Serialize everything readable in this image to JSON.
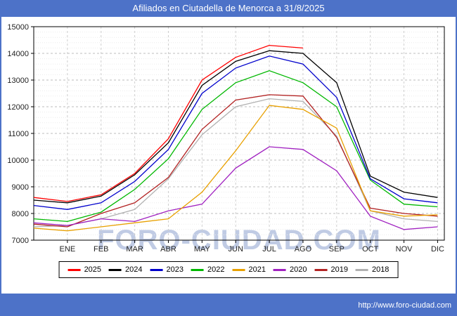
{
  "header": {
    "title": "Afiliados en Ciutadella de Menorca a 31/8/2025"
  },
  "watermark": "FORO-CIUDAD.COM",
  "footer": {
    "url": "http://www.foro-ciudad.com"
  },
  "colors": {
    "frame_blue": "#4d72c8",
    "panel_white": "#ffffff",
    "plot_border": "#000000",
    "grid_major": "#bdbdbd",
    "grid_minor": "#ececec",
    "watermark": "#8299cb"
  },
  "chart_data": {
    "type": "line",
    "title": "Afiliados en Ciutadella de Menorca a 31/8/2025",
    "xlabel": "",
    "ylabel": "",
    "ylim": [
      7000,
      15000
    ],
    "ytick_step": 1000,
    "ytick_minor_step": 200,
    "grid": true,
    "legend_position": "bottom",
    "categories": [
      "ENE",
      "FEB",
      "MAR",
      "ABR",
      "MAY",
      "JUN",
      "JUL",
      "AGO",
      "SEP",
      "OCT",
      "NOV",
      "DIC"
    ],
    "series": [
      {
        "name": "2025",
        "color": "#ff0000",
        "start": 8600,
        "values": [
          8450,
          8700,
          9500,
          10800,
          13000,
          13850,
          14300,
          14200,
          null,
          null,
          null,
          null
        ]
      },
      {
        "name": "2024",
        "color": "#000000",
        "start": 8500,
        "values": [
          8400,
          8650,
          9450,
          10650,
          12800,
          13700,
          14100,
          14000,
          12900,
          9400,
          8800,
          8600
        ]
      },
      {
        "name": "2023",
        "color": "#0000cc",
        "start": 8300,
        "values": [
          8150,
          8400,
          9200,
          10400,
          12500,
          13450,
          13900,
          13600,
          12350,
          9300,
          8550,
          8400
        ]
      },
      {
        "name": "2022",
        "color": "#00b800",
        "start": 7800,
        "values": [
          7700,
          8050,
          8900,
          10050,
          11900,
          12900,
          13350,
          12900,
          12000,
          9250,
          8350,
          8250
        ]
      },
      {
        "name": "2021",
        "color": "#e8a000",
        "start": 7450,
        "values": [
          7350,
          7500,
          7650,
          7800,
          8800,
          10350,
          12050,
          11900,
          11200,
          8100,
          7900,
          7950
        ]
      },
      {
        "name": "2020",
        "color": "#a020c0",
        "start": 7650,
        "values": [
          7550,
          7800,
          7700,
          8100,
          8350,
          9700,
          10500,
          10400,
          9600,
          7900,
          7400,
          7500
        ]
      },
      {
        "name": "2019",
        "color": "#b22222",
        "start": 7600,
        "values": [
          7500,
          8000,
          8400,
          9350,
          11150,
          12250,
          12450,
          12400,
          10850,
          8200,
          8000,
          7900
        ]
      },
      {
        "name": "2018",
        "color": "#b0b0b0",
        "start": 7500,
        "values": [
          7550,
          7800,
          8150,
          9300,
          10950,
          12000,
          12300,
          12200,
          10900,
          8100,
          7800,
          7700
        ]
      }
    ]
  }
}
